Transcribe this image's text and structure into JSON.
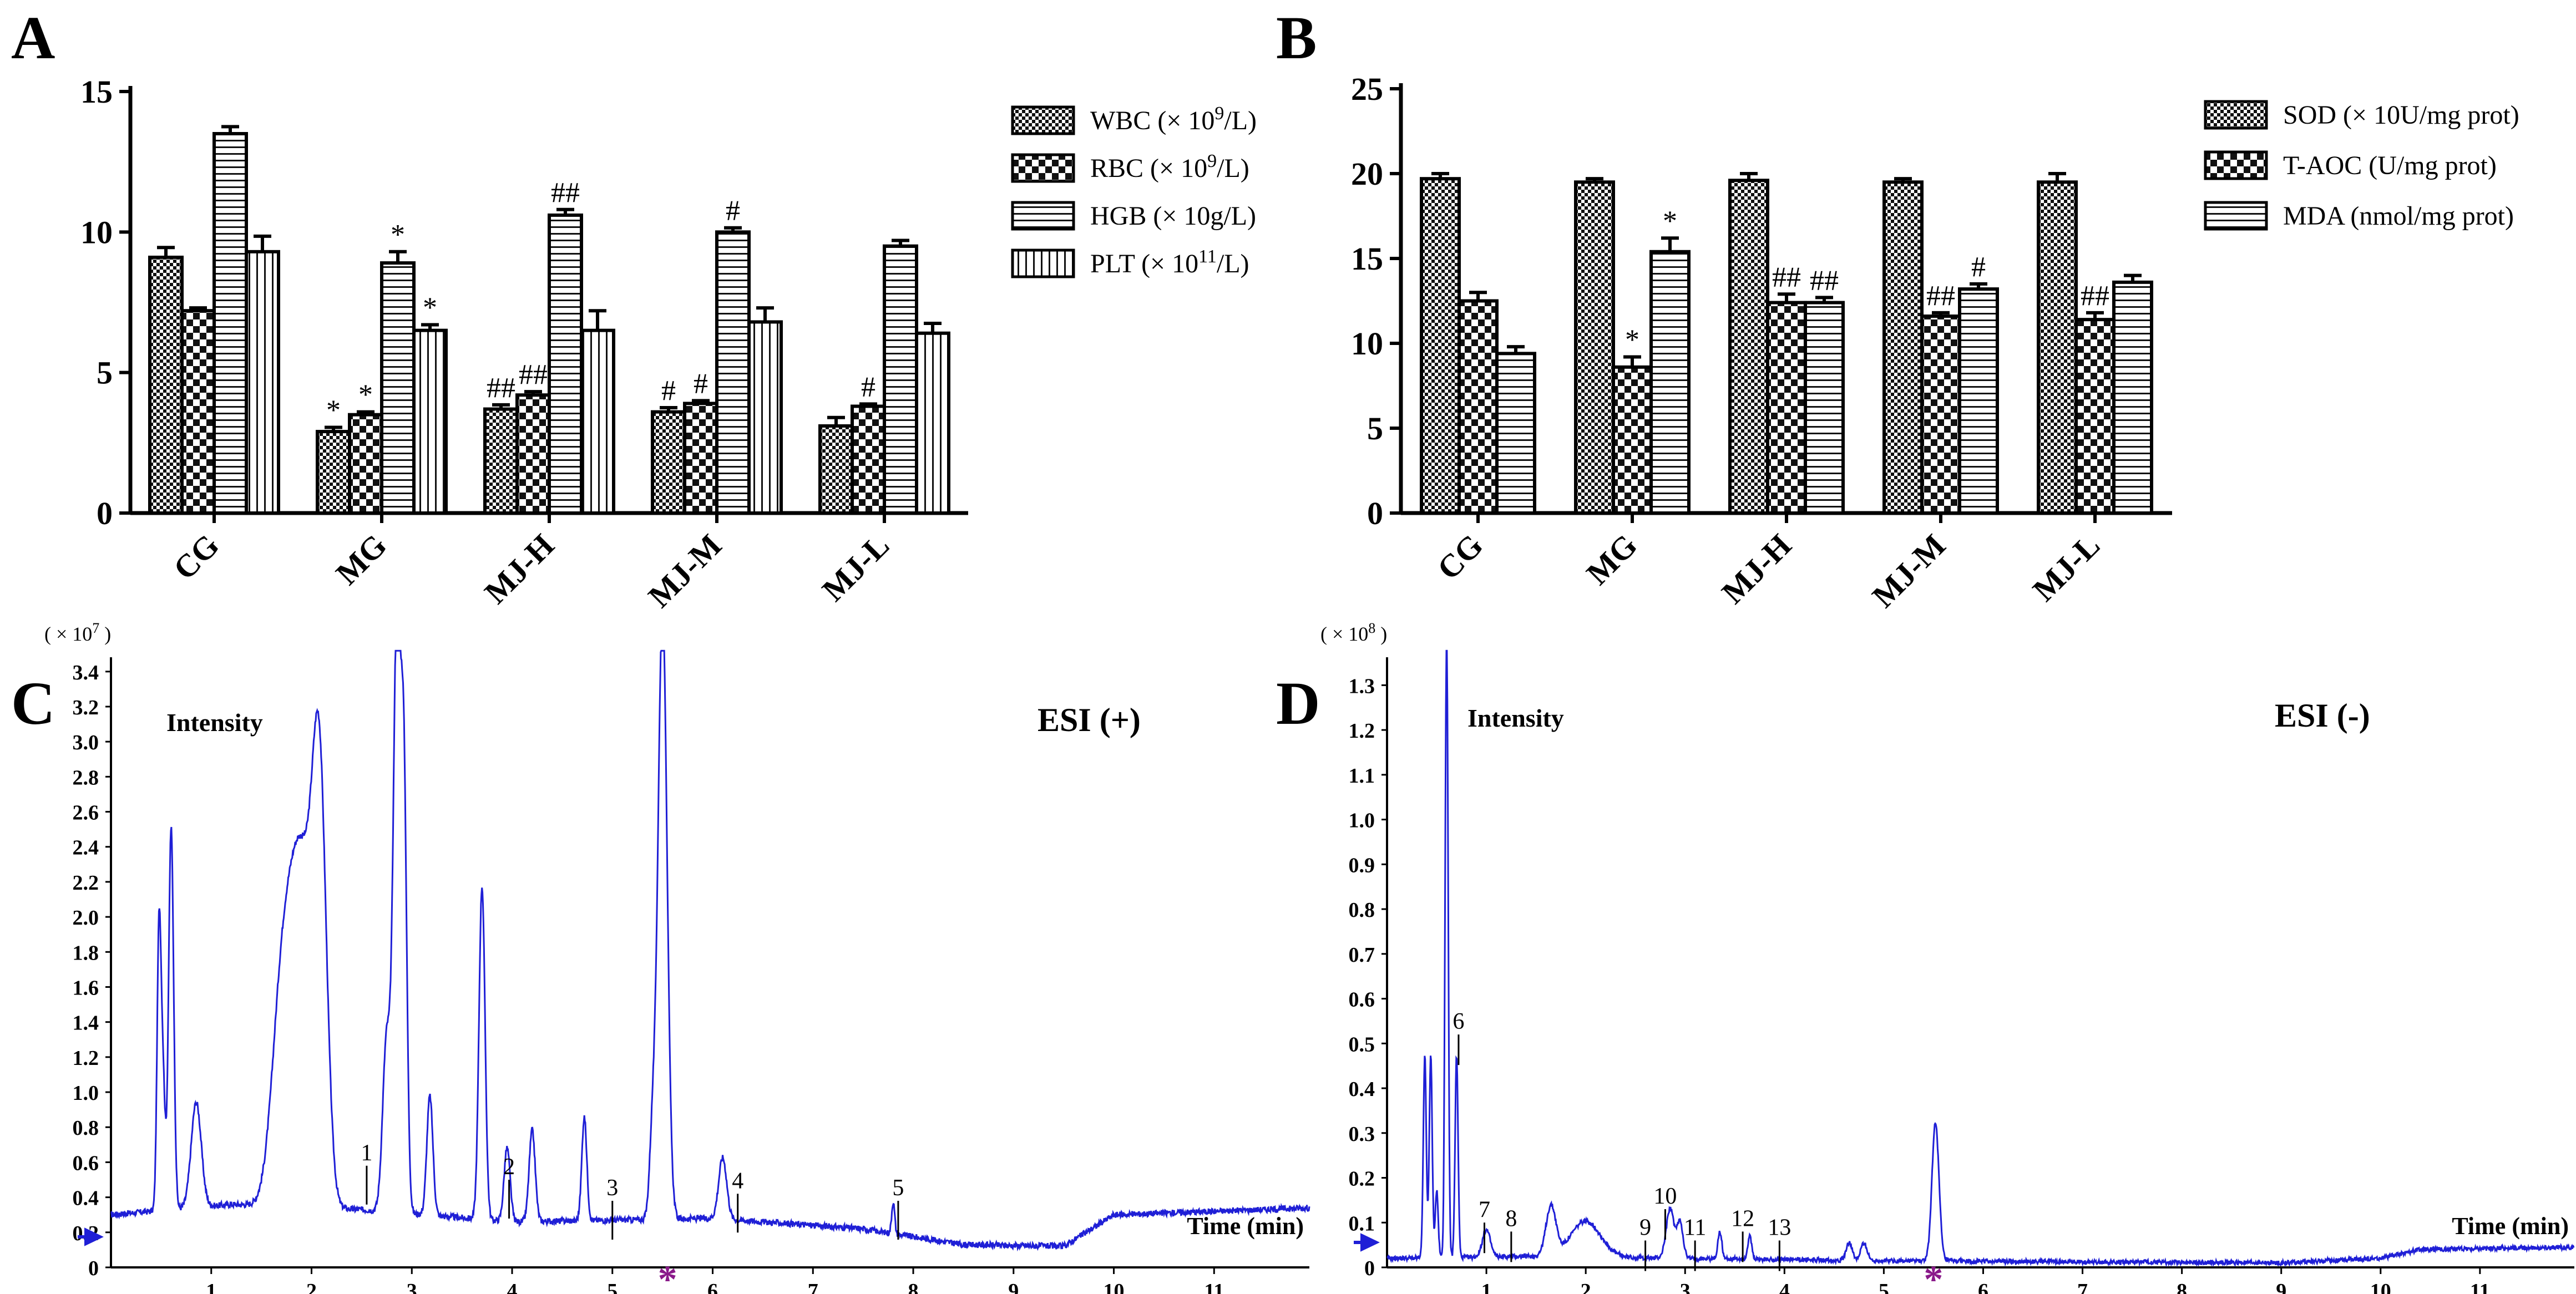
{
  "panels": {
    "A": {
      "letter": "A"
    },
    "B": {
      "letter": "B"
    },
    "C": {
      "letter": "C"
    },
    "D": {
      "letter": "D"
    }
  },
  "chart_data": [
    {
      "id": "A",
      "type": "bar",
      "categories": [
        "CG",
        "MG",
        "MJ-H",
        "MJ-M",
        "MJ-L"
      ],
      "ylim": [
        0,
        15
      ],
      "yticks": [
        "0",
        "5",
        "10",
        "15"
      ],
      "series": [
        {
          "name": "WBC (× 10",
          "sup": "9",
          "suffix": "/L)",
          "pattern": "fine-check",
          "values": [
            9.1,
            2.9,
            3.7,
            3.6,
            3.1
          ],
          "errors": [
            0.35,
            0.15,
            0.15,
            0.15,
            0.3
          ],
          "marks": [
            "",
            "*",
            "##",
            "#",
            ""
          ]
        },
        {
          "name": "RBC (× 10",
          "sup": "9",
          "suffix": "/L)",
          "pattern": "coarse-check",
          "values": [
            7.2,
            3.5,
            4.2,
            3.9,
            3.8
          ],
          "errors": [
            0.1,
            0.1,
            0.12,
            0.1,
            0.08
          ],
          "marks": [
            "",
            "*",
            "##",
            "#",
            "#"
          ]
        },
        {
          "name": "HGB (× 10g/L)",
          "sup": "",
          "suffix": "",
          "pattern": "horizontal",
          "values": [
            13.5,
            8.9,
            10.6,
            10.0,
            9.5
          ],
          "errors": [
            0.25,
            0.4,
            0.2,
            0.15,
            0.2
          ],
          "marks": [
            "",
            "*",
            "##",
            "#",
            ""
          ]
        },
        {
          "name": "PLT (× 10",
          "sup": "11",
          "suffix": "/L)",
          "pattern": "vertical",
          "values": [
            9.3,
            6.5,
            6.5,
            6.8,
            6.4
          ],
          "errors": [
            0.55,
            0.2,
            0.7,
            0.5,
            0.35
          ],
          "marks": [
            "",
            "*",
            "",
            "",
            ""
          ]
        }
      ]
    },
    {
      "id": "B",
      "type": "bar",
      "categories": [
        "CG",
        "MG",
        "MJ-H",
        "MJ-M",
        "MJ-L"
      ],
      "ylim": [
        0,
        25
      ],
      "yticks": [
        "0",
        "5",
        "10",
        "15",
        "20",
        "25"
      ],
      "series": [
        {
          "name": "SOD (× 10U/mg prot)",
          "sup": "",
          "suffix": "",
          "pattern": "fine-check",
          "values": [
            19.7,
            19.5,
            19.6,
            19.5,
            19.5
          ],
          "errors": [
            0.3,
            0.2,
            0.4,
            0.2,
            0.5
          ],
          "marks": [
            "",
            "",
            "",
            "",
            ""
          ]
        },
        {
          "name": "T-AOC (U/mg prot)",
          "sup": "",
          "suffix": "",
          "pattern": "coarse-check",
          "values": [
            12.5,
            8.6,
            12.4,
            11.6,
            11.4
          ],
          "errors": [
            0.5,
            0.6,
            0.5,
            0.2,
            0.4
          ],
          "marks": [
            "",
            "*",
            "##",
            "##",
            "##"
          ]
        },
        {
          "name": "MDA (nmol/mg prot)",
          "sup": "",
          "suffix": "",
          "pattern": "horizontal",
          "values": [
            9.4,
            15.4,
            12.4,
            13.2,
            13.6
          ],
          "errors": [
            0.4,
            0.8,
            0.3,
            0.3,
            0.4
          ],
          "marks": [
            "",
            "*",
            "##",
            "#",
            ""
          ]
        }
      ]
    },
    {
      "id": "C",
      "type": "line",
      "ylabel_scale": "( × 10",
      "ylabel_exp": "7",
      "ylabel_end": " )",
      "intensity_label": "Intensity",
      "mode_label": "ESI (+)",
      "xlabel": "Time (min)",
      "xlim": [
        0,
        11.95
      ],
      "ylim": [
        0,
        3.45
      ],
      "xticks": [
        "1",
        "2",
        "3",
        "4",
        "5",
        "6",
        "7",
        "8",
        "9",
        "10",
        "11"
      ],
      "yticks": [
        "0",
        "0.2",
        "0.4",
        "0.6",
        "0.8",
        "1.0",
        "1.2",
        "1.4",
        "1.6",
        "1.8",
        "2.0",
        "2.2",
        "2.4",
        "2.6",
        "2.8",
        "3.0",
        "3.2",
        "3.4"
      ],
      "peaks": [
        {
          "t": 0.48,
          "h": 1.63,
          "w": 0.02
        },
        {
          "t": 0.6,
          "h": 2.18,
          "w": 0.025
        },
        {
          "t": 0.52,
          "h": 0.7,
          "w": 0.02
        },
        {
          "t": 0.85,
          "h": 0.6,
          "w": 0.05
        },
        {
          "t": 1.9,
          "h": 1.9,
          "w": 0.12
        },
        {
          "t": 2.08,
          "h": 2.14,
          "w": 0.07
        },
        {
          "t": 1.7,
          "h": 1.05,
          "w": 0.1
        },
        {
          "t": 2.85,
          "h": 3.32,
          "w": 0.035
        },
        {
          "t": 2.92,
          "h": 2.42,
          "w": 0.03
        },
        {
          "t": 2.75,
          "h": 1.0,
          "w": 0.04
        },
        {
          "t": 3.18,
          "h": 0.68,
          "w": 0.03
        },
        {
          "t": 3.7,
          "h": 1.9,
          "w": 0.03
        },
        {
          "t": 3.95,
          "h": 0.42,
          "w": 0.03
        },
        {
          "t": 4.2,
          "h": 0.52,
          "w": 0.03
        },
        {
          "t": 4.72,
          "h": 0.59,
          "w": 0.025
        },
        {
          "t": 5.4,
          "h": 0.45,
          "w": 0.03
        },
        {
          "t": 5.5,
          "h": 3.5,
          "w": 0.045
        },
        {
          "t": 6.1,
          "h": 0.35,
          "w": 0.04
        },
        {
          "t": 7.8,
          "h": 0.18,
          "w": 0.015
        }
      ],
      "baseline": [
        [
          0,
          0.3
        ],
        [
          1.2,
          0.36
        ],
        [
          2.5,
          0.33
        ],
        [
          4.0,
          0.26
        ],
        [
          6.0,
          0.28
        ],
        [
          7.5,
          0.22
        ],
        [
          8.5,
          0.13
        ],
        [
          9.5,
          0.12
        ],
        [
          10.0,
          0.3
        ],
        [
          11.95,
          0.34
        ]
      ],
      "annotations": [
        {
          "label": "1",
          "t": 2.55,
          "y": 0.58
        },
        {
          "label": "2",
          "t": 3.97,
          "y": 0.5
        },
        {
          "label": "3",
          "t": 5.0,
          "y": 0.38
        },
        {
          "label": "4",
          "t": 6.25,
          "y": 0.42
        },
        {
          "label": "5",
          "t": 7.85,
          "y": 0.38
        }
      ],
      "marker": "*",
      "marker_t": 5.55
    },
    {
      "id": "D",
      "type": "line",
      "ylabel_scale": "( × 10",
      "ylabel_exp": "8",
      "ylabel_end": " )",
      "intensity_label": "Intensity",
      "mode_label": "ESI (-)",
      "xlabel": "Time (min)",
      "xlim": [
        0,
        11.95
      ],
      "ylim": [
        0,
        1.35
      ],
      "xticks": [
        "1",
        "2",
        "3",
        "4",
        "5",
        "6",
        "7",
        "8",
        "9",
        "10",
        "11"
      ],
      "yticks": [
        "0",
        "0.1",
        "0.2",
        "0.3",
        "0.4",
        "0.5",
        "0.6",
        "0.7",
        "0.8",
        "0.9",
        "1.0",
        "1.1",
        "1.2",
        "1.3"
      ],
      "peaks": [
        {
          "t": 0.38,
          "h": 0.45,
          "w": 0.015
        },
        {
          "t": 0.44,
          "h": 0.45,
          "w": 0.015
        },
        {
          "t": 0.5,
          "h": 0.15,
          "w": 0.015
        },
        {
          "t": 0.6,
          "h": 1.4,
          "w": 0.015
        },
        {
          "t": 0.7,
          "h": 0.45,
          "w": 0.015
        },
        {
          "t": 1.0,
          "h": 0.06,
          "w": 0.04
        },
        {
          "t": 1.65,
          "h": 0.11,
          "w": 0.05
        },
        {
          "t": 2.0,
          "h": 0.08,
          "w": 0.15
        },
        {
          "t": 2.85,
          "h": 0.11,
          "w": 0.04
        },
        {
          "t": 2.95,
          "h": 0.08,
          "w": 0.03
        },
        {
          "t": 3.35,
          "h": 0.06,
          "w": 0.02
        },
        {
          "t": 3.65,
          "h": 0.05,
          "w": 0.02
        },
        {
          "t": 4.65,
          "h": 0.04,
          "w": 0.03
        },
        {
          "t": 4.8,
          "h": 0.04,
          "w": 0.03
        },
        {
          "t": 5.52,
          "h": 0.31,
          "w": 0.035
        }
      ],
      "baseline": [
        [
          0,
          0.02
        ],
        [
          1.5,
          0.025
        ],
        [
          3.0,
          0.02
        ],
        [
          5.0,
          0.015
        ],
        [
          9.0,
          0.01
        ],
        [
          10.0,
          0.02
        ],
        [
          10.4,
          0.04
        ],
        [
          11.95,
          0.045
        ]
      ],
      "annotations": [
        {
          "label": "6",
          "t": 0.72,
          "y": 0.52
        },
        {
          "label": "7",
          "t": 0.98,
          "y": 0.1
        },
        {
          "label": "8",
          "t": 1.25,
          "y": 0.08
        },
        {
          "label": "9",
          "t": 2.6,
          "y": 0.06
        },
        {
          "label": "10",
          "t": 2.8,
          "y": 0.13
        },
        {
          "label": "11",
          "t": 3.1,
          "y": 0.06
        },
        {
          "label": "12",
          "t": 3.58,
          "y": 0.08
        },
        {
          "label": "13",
          "t": 3.95,
          "y": 0.06
        }
      ],
      "marker": "*",
      "marker_t": 5.5
    }
  ]
}
